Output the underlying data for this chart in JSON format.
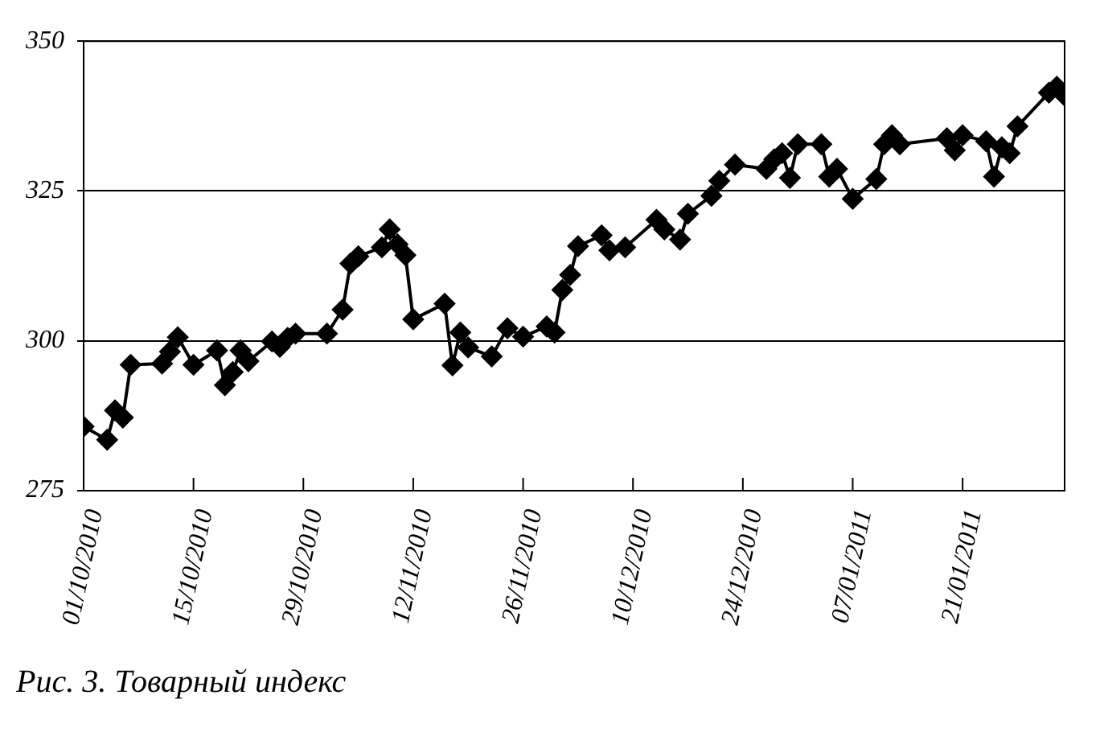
{
  "chart_data": {
    "type": "line",
    "x": [
      "2010-10-01",
      "2010-10-04",
      "2010-10-05",
      "2010-10-06",
      "2010-10-07",
      "2010-10-11",
      "2010-10-12",
      "2010-10-13",
      "2010-10-15",
      "2010-10-18",
      "2010-10-19",
      "2010-10-20",
      "2010-10-21",
      "2010-10-22",
      "2010-10-25",
      "2010-10-26",
      "2010-10-27",
      "2010-10-28",
      "2010-11-01",
      "2010-11-03",
      "2010-11-04",
      "2010-11-05",
      "2010-11-08",
      "2010-11-09",
      "2010-11-10",
      "2010-11-11",
      "2010-11-12",
      "2010-11-16",
      "2010-11-17",
      "2010-11-18",
      "2010-11-19",
      "2010-11-22",
      "2010-11-24",
      "2010-11-26",
      "2010-11-29",
      "2010-11-30",
      "2010-12-01",
      "2010-12-02",
      "2010-12-03",
      "2010-12-06",
      "2010-12-07",
      "2010-12-09",
      "2010-12-13",
      "2010-12-14",
      "2010-12-16",
      "2010-12-17",
      "2010-12-20",
      "2010-12-21",
      "2010-12-23",
      "2010-12-27",
      "2010-12-28",
      "2010-12-29",
      "2010-12-30",
      "2010-12-31",
      "2011-01-03",
      "2011-01-04",
      "2011-01-05",
      "2011-01-07",
      "2011-01-10",
      "2011-01-11",
      "2011-01-12",
      "2011-01-13",
      "2011-01-19",
      "2011-01-20",
      "2011-01-21",
      "2011-01-24",
      "2011-01-25",
      "2011-01-26",
      "2011-01-27",
      "2011-01-28",
      "2011-02-01",
      "2011-02-02",
      "2011-02-03"
    ],
    "values": [
      285.7,
      283.5,
      288.4,
      287.2,
      296,
      296.2,
      298.2,
      300.6,
      296,
      298.4,
      292.6,
      294.8,
      298.4,
      296.6,
      299.9,
      299,
      300.5,
      301.2,
      301.2,
      305.2,
      312.9,
      314.1,
      315.6,
      318.6,
      316.1,
      314.3,
      303.6,
      306.2,
      295.9,
      301.4,
      298.9,
      297.4,
      302.1,
      300.7,
      302.4,
      301.4,
      308.5,
      311,
      315.8,
      317.6,
      315.1,
      315.6,
      320.2,
      318.6,
      316.9,
      321.2,
      324.2,
      326.7,
      329.4,
      328.7,
      330.3,
      331.3,
      327.2,
      332.8,
      332.8,
      327.4,
      328.7,
      323.7,
      327,
      332.8,
      334.3,
      332.8,
      333.8,
      331.8,
      334.3,
      333.3,
      327.4,
      332.3,
      331.3,
      335.8,
      341.4,
      342.4,
      340.9
    ],
    "color": "#000000",
    "marker": "diamond",
    "line_style": "solid",
    "xlim": [
      "2010-10-01",
      "2011-02-03"
    ],
    "xticks": [
      {
        "value": "2010-10-01",
        "label": "01/10/2010"
      },
      {
        "value": "2010-10-15",
        "label": "15/10/2010"
      },
      {
        "value": "2010-10-29",
        "label": "29/10/2010"
      },
      {
        "value": "2010-11-12",
        "label": "12/11/2010"
      },
      {
        "value": "2010-11-26",
        "label": "26/11/2010"
      },
      {
        "value": "2010-12-10",
        "label": "10/12/2010"
      },
      {
        "value": "2010-12-24",
        "label": "24/12/2010"
      },
      {
        "value": "2011-01-07",
        "label": "07/01/2011"
      },
      {
        "value": "2011-01-21",
        "label": "21/01/2011"
      }
    ],
    "ylim": [
      275,
      350
    ],
    "yticks": [
      275,
      300,
      325,
      350
    ],
    "grid": "y",
    "legend": false,
    "annotations": [
      "Рис. 3. Товарный индекс"
    ]
  }
}
